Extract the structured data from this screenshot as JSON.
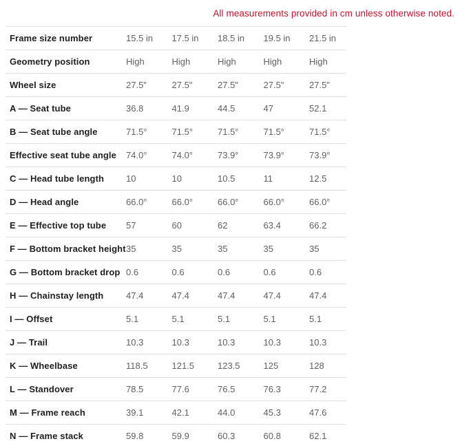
{
  "note": "All measurements provided in cm unless otherwise noted.",
  "colors": {
    "note_red": "#c41230",
    "label_text": "#212121",
    "value_text": "#616161",
    "divider": "#e0e0e0"
  },
  "table": {
    "rows": [
      {
        "label": "Frame size number",
        "values": [
          "15.5 in",
          "17.5 in",
          "18.5 in",
          "19.5 in",
          "21.5 in"
        ]
      },
      {
        "label": "Geometry position",
        "values": [
          "High",
          "High",
          "High",
          "High",
          "High"
        ]
      },
      {
        "label": "Wheel size",
        "values": [
          "27.5\"",
          "27.5\"",
          "27.5\"",
          "27.5\"",
          "27.5\""
        ]
      },
      {
        "label": "A — Seat tube",
        "values": [
          "36.8",
          "41.9",
          "44.5",
          "47",
          "52.1"
        ]
      },
      {
        "label": "B — Seat tube angle",
        "values": [
          "71.5°",
          "71.5°",
          "71.5°",
          "71.5°",
          "71.5°"
        ]
      },
      {
        "label": "Effective seat tube angle",
        "values": [
          "74.0°",
          "74.0°",
          "73.9°",
          "73.9°",
          "73.9°"
        ]
      },
      {
        "label": "C — Head tube length",
        "values": [
          "10",
          "10",
          "10.5",
          "11",
          "12.5"
        ]
      },
      {
        "label": "D — Head angle",
        "values": [
          "66.0°",
          "66.0°",
          "66.0°",
          "66.0°",
          "66.0°"
        ]
      },
      {
        "label": "E — Effective top tube",
        "values": [
          "57",
          "60",
          "62",
          "63.4",
          "66.2"
        ]
      },
      {
        "label": "F — Bottom bracket height",
        "values": [
          "35",
          "35",
          "35",
          "35",
          "35"
        ]
      },
      {
        "label": "G — Bottom bracket drop",
        "values": [
          "0.6",
          "0.6",
          "0.6",
          "0.6",
          "0.6"
        ]
      },
      {
        "label": "H — Chainstay length",
        "values": [
          "47.4",
          "47.4",
          "47.4",
          "47.4",
          "47.4"
        ]
      },
      {
        "label": "I — Offset",
        "values": [
          "5.1",
          "5.1",
          "5.1",
          "5.1",
          "5.1"
        ]
      },
      {
        "label": "J — Trail",
        "values": [
          "10.3",
          "10.3",
          "10.3",
          "10.3",
          "10.3"
        ]
      },
      {
        "label": "K — Wheelbase",
        "values": [
          "118.5",
          "121.5",
          "123.5",
          "125",
          "128"
        ]
      },
      {
        "label": "L — Standover",
        "values": [
          "78.5",
          "77.6",
          "76.5",
          "76.3",
          "77.2"
        ]
      },
      {
        "label": "M — Frame reach",
        "values": [
          "39.1",
          "42.1",
          "44.0",
          "45.3",
          "47.6"
        ]
      },
      {
        "label": "N — Frame stack",
        "values": [
          "59.8",
          "59.9",
          "60.3",
          "60.8",
          "62.1"
        ]
      }
    ]
  }
}
